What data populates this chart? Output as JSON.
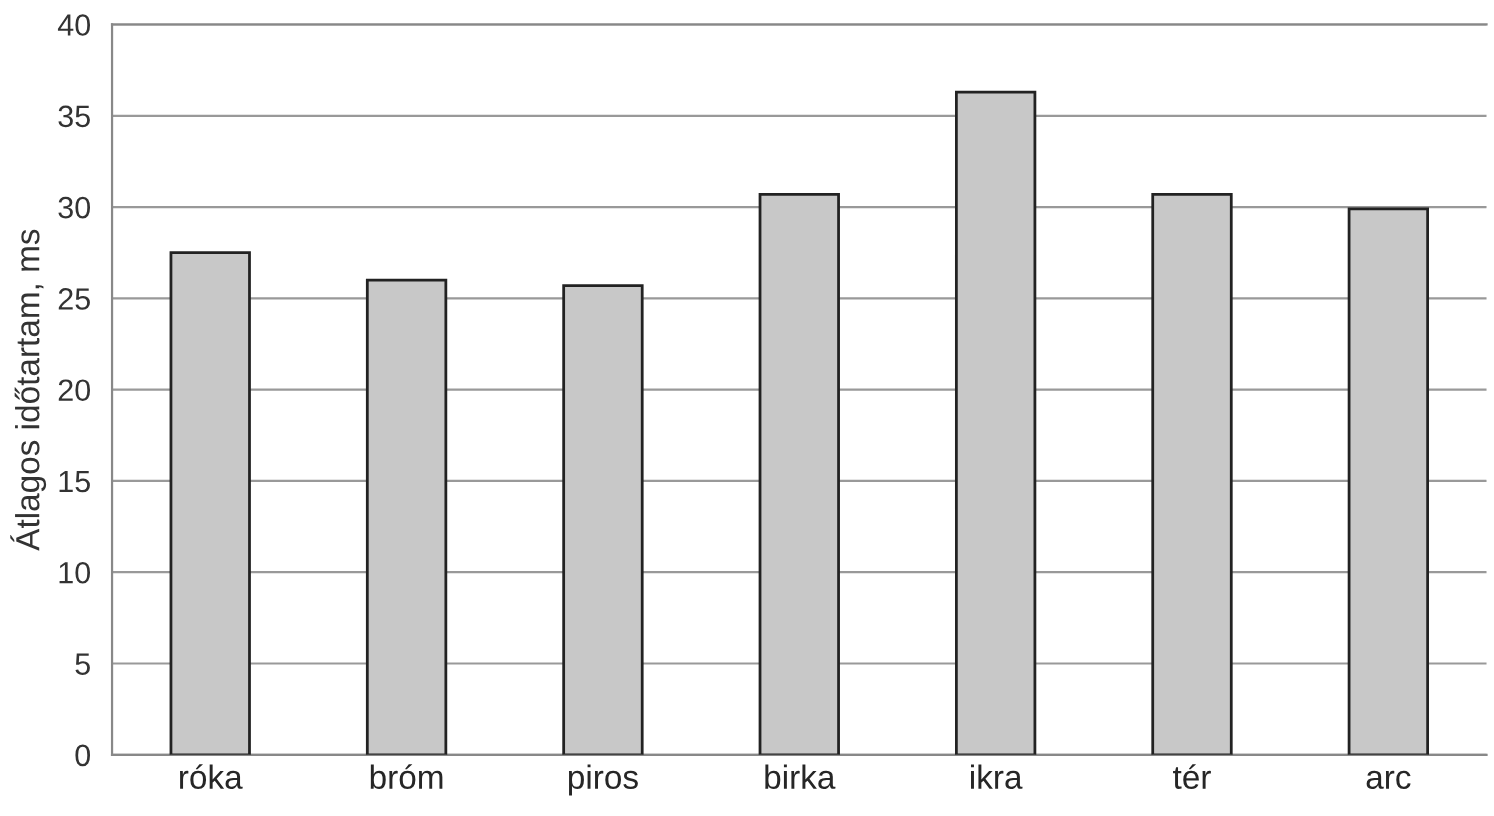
{
  "chart_data": {
    "type": "bar",
    "ylabel": "Átlagos időtartam, ms",
    "categories": [
      "róka",
      "bróm",
      "piros",
      "birka",
      "ikra",
      "tér",
      "arc"
    ],
    "values": [
      27.5,
      26.0,
      25.7,
      30.7,
      36.3,
      30.7,
      29.9
    ],
    "color": "#c8c8c8",
    "ylim": [
      0,
      40
    ],
    "yticks": [
      0,
      5,
      10,
      15,
      20,
      25,
      30,
      35,
      40
    ],
    "grid": "y"
  }
}
